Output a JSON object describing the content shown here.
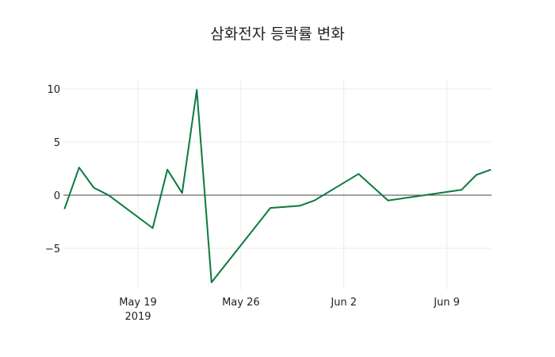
{
  "chart_data": {
    "type": "line",
    "title": "삼화전자 등락률 변화",
    "xlabel": "",
    "ylabel": "",
    "ylim": [
      -8.3,
      11
    ],
    "yticks": [
      10,
      5,
      0,
      -5
    ],
    "ytick_labels": [
      "10",
      "5",
      "0",
      "−5"
    ],
    "xticks": [
      "2019-05-19",
      "2019-05-26",
      "2019-06-02",
      "2019-06-09"
    ],
    "xtick_labels": [
      "May 19\n2019",
      "May 26",
      "Jun 2",
      "Jun 9"
    ],
    "grid": true,
    "line_color": "#0a7a3e",
    "series": [
      {
        "name": "등락률",
        "x": [
          "2019-05-14",
          "2019-05-15",
          "2019-05-16",
          "2019-05-17",
          "2019-05-20",
          "2019-05-21",
          "2019-05-22",
          "2019-05-23",
          "2019-05-24",
          "2019-05-28",
          "2019-05-30",
          "2019-05-31",
          "2019-06-03",
          "2019-06-05",
          "2019-06-10",
          "2019-06-11",
          "2019-06-12"
        ],
        "values": [
          -1.3,
          2.6,
          0.7,
          0.0,
          -3.1,
          2.4,
          0.2,
          9.9,
          -8.2,
          -1.2,
          -1.0,
          -0.5,
          2.0,
          -0.5,
          0.5,
          1.9,
          2.4
        ]
      }
    ]
  }
}
